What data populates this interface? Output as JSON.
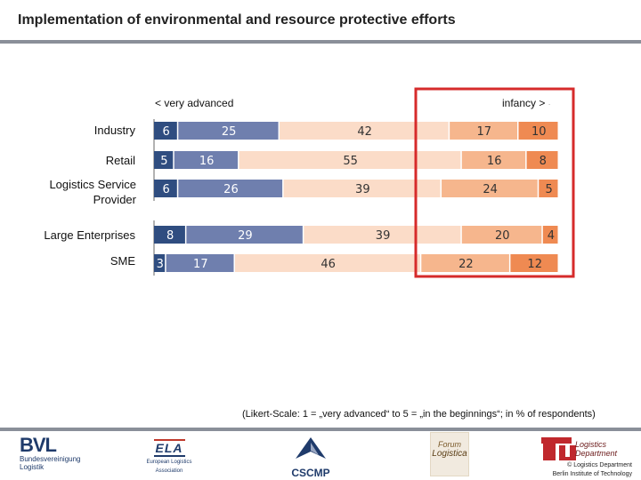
{
  "header": {
    "title": "Implementation of environmental and resource protective efforts"
  },
  "chart_data": {
    "type": "bar",
    "stacked": true,
    "orientation": "horizontal",
    "unit": "% of respondents",
    "axis_left_label": "< very advanced",
    "axis_right_label": "infancy >",
    "axis_right_marker": "·",
    "categories": [
      "Industry",
      "Retail",
      "Logistics Service Provider",
      "Large Enterprises",
      "SME"
    ],
    "series": [
      {
        "name": "1",
        "color": "#2f4d80",
        "values": [
          6,
          5,
          6,
          8,
          3
        ]
      },
      {
        "name": "2",
        "color": "#6f7fae",
        "values": [
          25,
          16,
          26,
          29,
          17
        ]
      },
      {
        "name": "3",
        "color": "#fbdcc8",
        "values": [
          42,
          55,
          39,
          39,
          46
        ]
      },
      {
        "name": "4",
        "color": "#f6b68d",
        "values": [
          17,
          16,
          24,
          20,
          22
        ]
      },
      {
        "name": "5",
        "color": "#ef8a52",
        "values": [
          10,
          8,
          5,
          4,
          12
        ]
      }
    ],
    "highlight_color": "#d62b2b"
  },
  "note": "(Likert-Scale: 1 = „very advanced“ to 5 = „in the beginnings“; in % of respondents)",
  "footer": {
    "bvl": {
      "name": "BVL",
      "subtitle_1": "Bundesvereinigung",
      "subtitle_2": "Logistik"
    },
    "ela": {
      "name": "ELA",
      "subtitle_1": "European Logistics",
      "subtitle_2": "Association"
    },
    "cscmp": {
      "name": "CSCMP"
    },
    "forum": {
      "line_1": "Forum",
      "line_2": "Logistica"
    },
    "tu": {
      "dept_1": "Logistics",
      "dept_2": "Department",
      "copyright": "© Logistics Department",
      "institute": "Berlin Institute of Technology"
    }
  }
}
